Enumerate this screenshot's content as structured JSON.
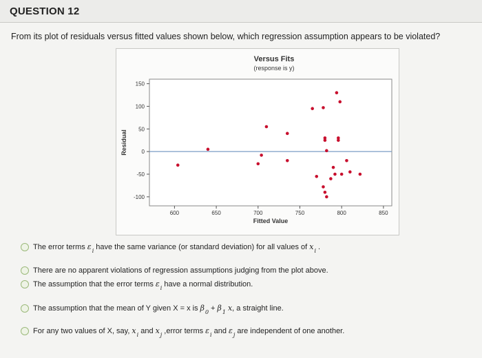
{
  "header": {
    "title": "QUESTION 12"
  },
  "question": {
    "text": "From its plot of residuals versus fitted values shown below, which regression assumption appears to be violated?"
  },
  "chart_data": {
    "type": "scatter",
    "title": "Versus Fits",
    "subtitle": "(response is y)",
    "xlabel": "Fitted Value",
    "ylabel": "Residual",
    "xlim": [
      570,
      860
    ],
    "ylim": [
      -120,
      160
    ],
    "x_ticks": [
      600,
      650,
      700,
      750,
      800,
      850
    ],
    "y_ticks": [
      150,
      100,
      50,
      0,
      -50,
      -100
    ],
    "reference_line_y": 0,
    "grid": false,
    "marker_color": "#c8102e",
    "reference_line_color": "#7a9cc6",
    "points": [
      {
        "x": 604,
        "y": -30
      },
      {
        "x": 640,
        "y": 5
      },
      {
        "x": 700,
        "y": -27
      },
      {
        "x": 704,
        "y": -8
      },
      {
        "x": 710,
        "y": 55
      },
      {
        "x": 735,
        "y": 40
      },
      {
        "x": 735,
        "y": -20
      },
      {
        "x": 765,
        "y": 95
      },
      {
        "x": 770,
        "y": -55
      },
      {
        "x": 778,
        "y": 97
      },
      {
        "x": 778,
        "y": -78
      },
      {
        "x": 780,
        "y": -90
      },
      {
        "x": 782,
        "y": -100
      },
      {
        "x": 780,
        "y": 30
      },
      {
        "x": 780,
        "y": 25
      },
      {
        "x": 782,
        "y": 2
      },
      {
        "x": 787,
        "y": -60
      },
      {
        "x": 790,
        "y": -35
      },
      {
        "x": 792,
        "y": -50
      },
      {
        "x": 794,
        "y": 130
      },
      {
        "x": 796,
        "y": 30
      },
      {
        "x": 796,
        "y": 25
      },
      {
        "x": 798,
        "y": 110
      },
      {
        "x": 800,
        "y": -50
      },
      {
        "x": 806,
        "y": -20
      },
      {
        "x": 810,
        "y": -45
      },
      {
        "x": 822,
        "y": -50
      }
    ]
  },
  "options": [
    {
      "label": "The error terms",
      "sym1": "ε",
      "sub1": "i",
      "rest": "have the same variance (or standard deviation) for all values of",
      "sym2": "x",
      "sub2": "i",
      "end": "."
    },
    {
      "label": "There are no apparent violations of regression assumptions judging from the plot above."
    },
    {
      "label": "The assumption that the error terms",
      "sym1": "ε",
      "sub1": "i",
      "rest": "have a normal distribution."
    },
    {
      "label": "The assumption that the mean of Y given X = x is",
      "b0": "β",
      "b0sub": "0",
      "plus": "+",
      "b1": "β",
      "b1sub": "1",
      "xvar": "x",
      "rest": ", a straight line."
    },
    {
      "label": "For any two values of X, say,",
      "x1": "x",
      "x1sub": "i",
      "and1": "and",
      "x2": "x",
      "x2sub": "j",
      "mid": ",error terms",
      "e1": "ε",
      "e1sub": "i",
      "and2": "and",
      "e2": "ε",
      "e2sub": "j",
      "rest": "are independent of one another."
    }
  ]
}
